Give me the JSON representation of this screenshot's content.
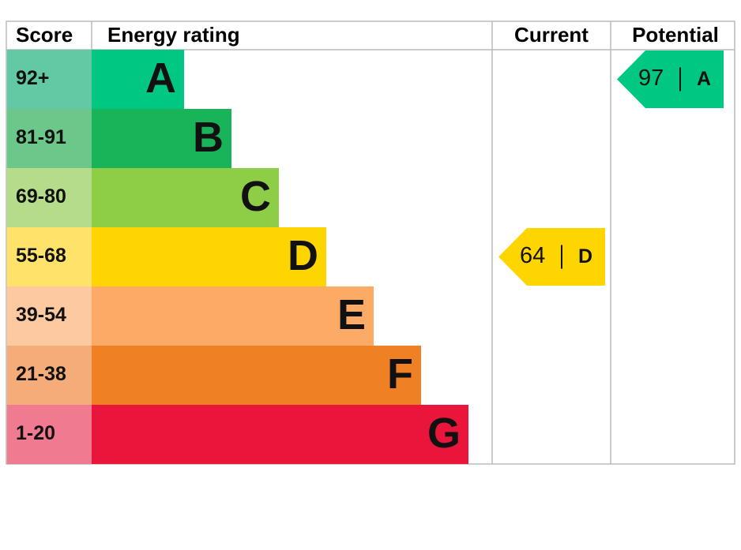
{
  "chart_data": {
    "type": "epc",
    "headers": [
      "Score",
      "Energy rating",
      "Current",
      "Potential"
    ],
    "categories": [
      "92+",
      "81-91",
      "69-80",
      "55-68",
      "39-54",
      "21-38",
      "1-20"
    ],
    "ratings": [
      "A",
      "B",
      "C",
      "D",
      "E",
      "F",
      "G"
    ],
    "colors": [
      "#00c781",
      "#19b459",
      "#8dce46",
      "#ffd500",
      "#fcaa65",
      "#ef8023",
      "#e9153b"
    ],
    "score_colors": [
      "#62c9a4",
      "#6cc78a",
      "#b5dc8b",
      "#ffe26a",
      "#fdc9a0",
      "#f4ad78",
      "#f07a90"
    ],
    "current": {
      "value": 64,
      "label": "D"
    },
    "potential": {
      "value": 97,
      "label": "A"
    }
  }
}
